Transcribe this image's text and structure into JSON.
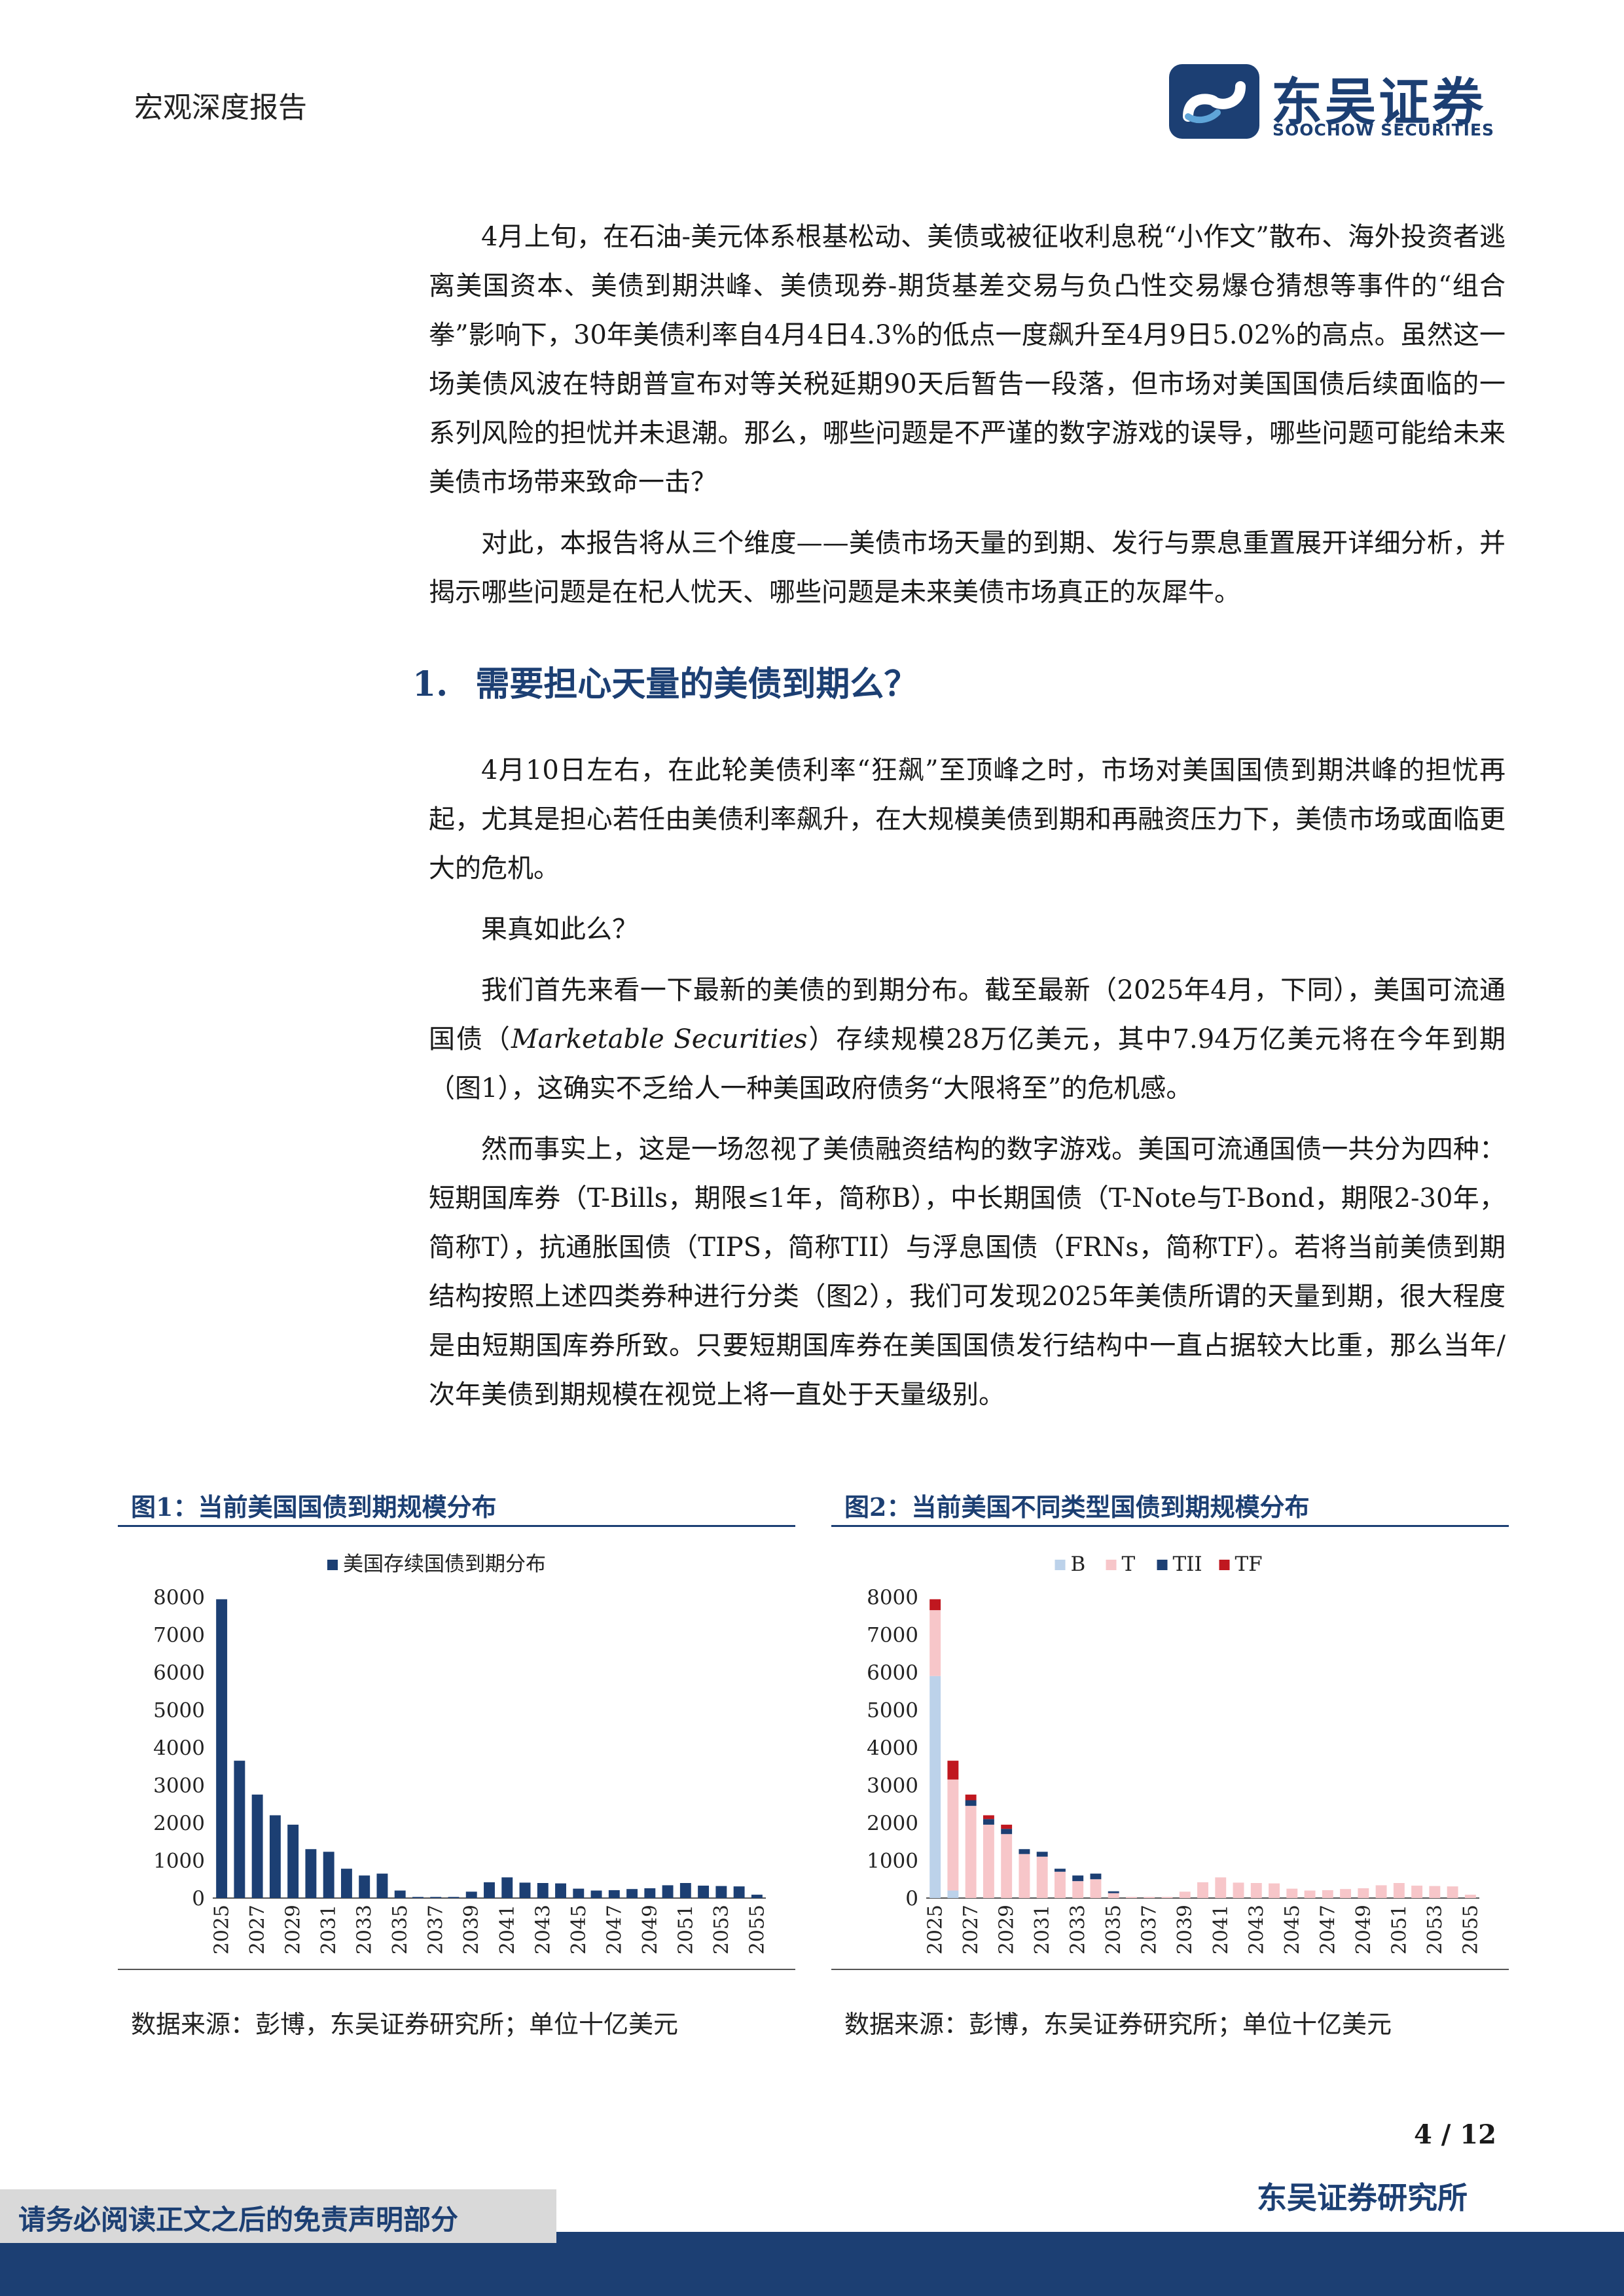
{
  "header": {
    "report_type": "宏观深度报告"
  },
  "logo": {
    "name_cn": "东吴证券",
    "name_en": "SOOCHOW SECURITIES"
  },
  "paragraphs": [
    "4月上旬，在石油-美元体系根基松动、美债或被征收利息税“小作文”散布、海外投资者逃离美国资本、美债到期洪峰、美债现券-期货基差交易与负凸性交易爆仓猜想等事件的“组合拳”影响下，30年美债利率自4月4日4.3%的低点一度飙升至4月9日5.02%的高点。虽然这一场美债风波在特朗普宣布对等关税延期90天后暂告一段落，但市场对美国国债后续面临的一系列风险的担忧并未退潮。那么，哪些问题是不严谨的数字游戏的误导，哪些问题可能给未来美债市场带来致命一击？",
    "对此，本报告将从三个维度——美债市场天量的到期、发行与票息重置展开详细分析，并揭示哪些问题是在杞人忧天、哪些问题是未来美债市场真正的灰犀牛。"
  ],
  "section": {
    "number": "1.",
    "title": "需要担心天量的美债到期么？"
  },
  "section_paragraphs": {
    "p1": "4月10日左右，在此轮美债利率“狂飙”至顶峰之时，市场对美国国债到期洪峰的担忧再起，尤其是担心若任由美债利率飙升，在大规模美债到期和再融资压力下，美债市场或面临更大的危机。",
    "p2": "果真如此么？",
    "p3_a": "我们首先来看一下最新的美债的到期分布。截至最新（2025年4月，下同），美国可流通国债（",
    "p3_italic": "Marketable Securities",
    "p3_b": "）存续规模28万亿美元，其中7.94万亿美元将在今年到期（图1），这确实不乏给人一种美国政府债务“大限将至”的危机感。",
    "p4": "然而事实上，这是一场忽视了美债融资结构的数字游戏。美国可流通国债一共分为四种：短期国库券（T-Bills，期限≤1年，简称B），中长期国债（T-Note与T-Bond，期限2-30年，简称T），抗通胀国债（TIPS，简称TII）与浮息国债（FRNs，简称TF）。若将当前美债到期结构按照上述四类券种进行分类（图2），我们可发现2025年美债所谓的天量到期，很大程度是由短期国库券所致。只要短期国库券在美国国债发行结构中一直占据较大比重，那么当年/次年美债到期规模在视觉上将一直处于天量级别。"
  },
  "figure1": {
    "title": "图1：当前美国国债到期规模分布",
    "source": "数据来源：彭博，东吴证券研究所；单位十亿美元"
  },
  "figure2": {
    "title": "图2：当前美国不同类型国债到期规模分布",
    "source": "数据来源：彭博，东吴证券研究所；单位十亿美元"
  },
  "chart_data": [
    {
      "type": "bar",
      "title": "",
      "categories": [
        "2025",
        "2026",
        "2027",
        "2028",
        "2029",
        "2030",
        "2031",
        "2032",
        "2033",
        "2034",
        "2035",
        "2036",
        "2037",
        "2038",
        "2039",
        "2040",
        "2041",
        "2042",
        "2043",
        "2044",
        "2045",
        "2046",
        "2047",
        "2048",
        "2049",
        "2050",
        "2051",
        "2052",
        "2053",
        "2054",
        "2055"
      ],
      "tick_labels": [
        "2025",
        "2027",
        "2029",
        "2031",
        "2033",
        "2035",
        "2037",
        "2039",
        "2041",
        "2043",
        "2045",
        "2047",
        "2049",
        "2051",
        "2053",
        "2055"
      ],
      "series": [
        {
          "name": "美国存续国债到期分布",
          "color": "#1c3f73",
          "values": [
            7940,
            3650,
            2750,
            2200,
            1950,
            1300,
            1230,
            780,
            600,
            650,
            200,
            30,
            30,
            30,
            170,
            420,
            550,
            410,
            400,
            390,
            250,
            200,
            210,
            240,
            260,
            340,
            400,
            330,
            320,
            310,
            90
          ]
        }
      ],
      "ylim": [
        0,
        8000
      ],
      "yticks": [
        0,
        1000,
        2000,
        3000,
        4000,
        5000,
        6000,
        7000,
        8000
      ],
      "legend": "top"
    },
    {
      "type": "bar",
      "title": "",
      "stacked": true,
      "categories": [
        "2025",
        "2026",
        "2027",
        "2028",
        "2029",
        "2030",
        "2031",
        "2032",
        "2033",
        "2034",
        "2035",
        "2036",
        "2037",
        "2038",
        "2039",
        "2040",
        "2041",
        "2042",
        "2043",
        "2044",
        "2045",
        "2046",
        "2047",
        "2048",
        "2049",
        "2050",
        "2051",
        "2052",
        "2053",
        "2054",
        "2055"
      ],
      "tick_labels": [
        "2025",
        "2027",
        "2029",
        "2031",
        "2033",
        "2035",
        "2037",
        "2039",
        "2041",
        "2043",
        "2045",
        "2047",
        "2049",
        "2051",
        "2053",
        "2055"
      ],
      "series": [
        {
          "name": "B",
          "color": "#bcd2ea",
          "values": [
            5900,
            200,
            0,
            0,
            0,
            0,
            0,
            0,
            0,
            0,
            0,
            0,
            0,
            0,
            0,
            0,
            0,
            0,
            0,
            0,
            0,
            0,
            0,
            0,
            0,
            0,
            0,
            0,
            0,
            0,
            0
          ]
        },
        {
          "name": "T",
          "color": "#f7c6c9",
          "values": [
            1750,
            2950,
            2450,
            1950,
            1700,
            1170,
            1100,
            700,
            450,
            500,
            130,
            30,
            30,
            30,
            170,
            420,
            550,
            410,
            400,
            390,
            250,
            200,
            210,
            240,
            260,
            340,
            400,
            330,
            320,
            310,
            90
          ]
        },
        {
          "name": "TII",
          "color": "#1c3f73",
          "values": [
            0,
            0,
            150,
            150,
            140,
            130,
            130,
            80,
            150,
            150,
            50,
            0,
            0,
            0,
            0,
            0,
            0,
            0,
            0,
            0,
            0,
            0,
            0,
            0,
            0,
            0,
            0,
            0,
            0,
            0,
            0
          ]
        },
        {
          "name": "TF",
          "color": "#c0171f",
          "values": [
            290,
            500,
            150,
            100,
            110,
            0,
            0,
            0,
            0,
            0,
            0,
            0,
            0,
            0,
            0,
            0,
            0,
            0,
            0,
            0,
            0,
            0,
            0,
            0,
            0,
            0,
            0,
            0,
            0,
            0,
            0
          ]
        }
      ],
      "ylim": [
        0,
        8000
      ],
      "yticks": [
        0,
        1000,
        2000,
        3000,
        4000,
        5000,
        6000,
        7000,
        8000
      ],
      "legend": "top"
    }
  ],
  "footer": {
    "page": "4 / 12",
    "org": "东吴证券研究所",
    "disclaimer": "请务必阅读正文之后的免责声明部分"
  }
}
